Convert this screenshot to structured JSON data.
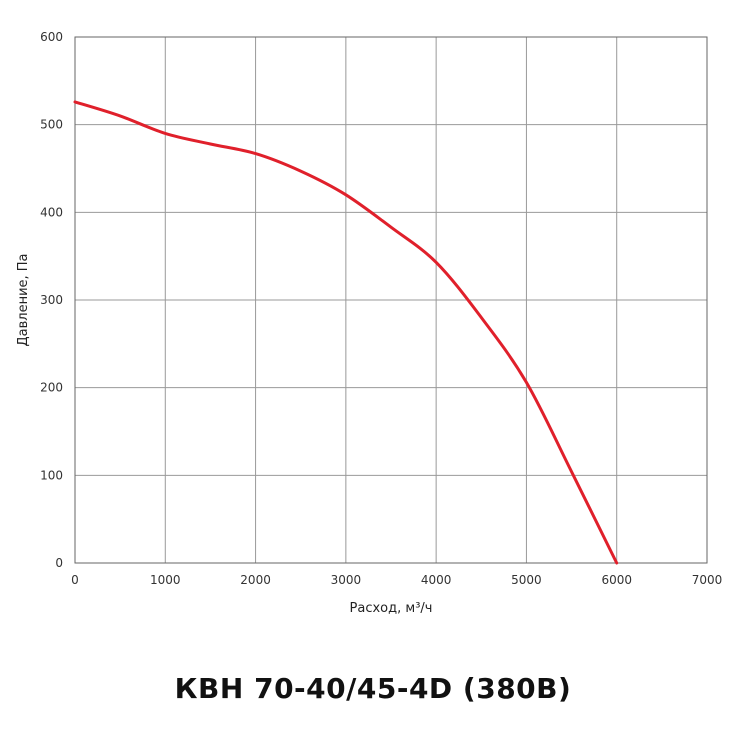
{
  "title": "КВН 70-40/45-4D (380В)",
  "chart_data": {
    "type": "line",
    "xlabel": "Расход, м³/ч",
    "ylabel": "Давление, Па",
    "xlim": [
      0,
      7000
    ],
    "ylim": [
      0,
      600
    ],
    "xticks": [
      0,
      1000,
      2000,
      3000,
      4000,
      5000,
      6000,
      7000
    ],
    "yticks": [
      0,
      100,
      200,
      300,
      400,
      500,
      600
    ],
    "grid": true,
    "series": [
      {
        "color": "#e0202b",
        "x": [
          0,
          500,
          1000,
          1500,
          2000,
          2500,
          3000,
          3500,
          4000,
          4500,
          5000,
          5500,
          6000
        ],
        "y": [
          526,
          510,
          490,
          478,
          467,
          447,
          420,
          383,
          343,
          280,
          206,
          104,
          0
        ]
      }
    ]
  }
}
